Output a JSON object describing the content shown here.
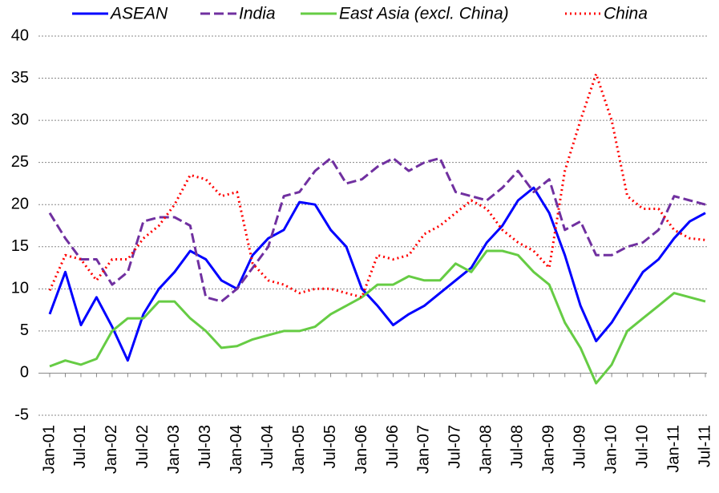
{
  "chart_data": {
    "type": "line",
    "categories": [
      "Jan-01",
      null,
      "Jul-01",
      null,
      "Jan-02",
      null,
      "Jul-02",
      null,
      "Jan-03",
      null,
      "Jul-03",
      null,
      "Jan-04",
      null,
      "Jul-04",
      null,
      "Jan-05",
      null,
      "Jul-05",
      null,
      "Jan-06",
      null,
      "Jul-06",
      null,
      "Jan-07",
      null,
      "Jul-07",
      null,
      "Jan-08",
      null,
      "Jul-08",
      null,
      "Jan-09",
      null,
      "Jul-09",
      null,
      "Jan-10",
      null,
      "Jul-10",
      null,
      "Jan-11",
      null,
      "Jul-11"
    ],
    "series": [
      {
        "name": "ASEAN",
        "color": "#0000ff",
        "style": "solid",
        "values": [
          7,
          12,
          5.7,
          9,
          5.5,
          1.5,
          7,
          10,
          12,
          14.5,
          13.5,
          11,
          10,
          14,
          16,
          17,
          20.3,
          20,
          17,
          15,
          10,
          8,
          5.7,
          7,
          8,
          9.5,
          11,
          12.5,
          15.5,
          17.5,
          20.5,
          22,
          19,
          14,
          8,
          3.8,
          6,
          9,
          12,
          13.5,
          16,
          18,
          19
        ]
      },
      {
        "name": "India",
        "color": "#7030a0",
        "style": "dashed",
        "values": [
          19,
          16,
          13.5,
          13.5,
          10.5,
          12,
          18,
          18.5,
          18.5,
          17.5,
          9,
          8.5,
          10,
          12.5,
          15,
          21,
          21.5,
          24,
          25.5,
          22.5,
          23,
          24.5,
          25.5,
          24,
          25,
          25.5,
          21.5,
          21,
          20.5,
          22,
          24,
          21.5,
          23,
          17,
          18,
          14,
          14,
          15,
          15.5,
          17,
          21,
          20.5,
          20
        ]
      },
      {
        "name": "East Asia (excl. China)",
        "color": "#66cc44",
        "style": "solid",
        "values": [
          0.8,
          1.5,
          1,
          1.7,
          5,
          6.5,
          6.5,
          8.5,
          8.5,
          6.5,
          5,
          3,
          3.2,
          4,
          4.5,
          5,
          5,
          5.5,
          7,
          8,
          9,
          10.5,
          10.5,
          11.5,
          11,
          11,
          13,
          12,
          14.5,
          14.5,
          14,
          12,
          10.5,
          6,
          3,
          -1.2,
          1,
          5,
          6.5,
          8,
          9.5,
          9,
          8.5
        ]
      },
      {
        "name": "China",
        "color": "#ff0000",
        "style": "dotted",
        "values": [
          9.8,
          14,
          13.5,
          11,
          13.5,
          13.5,
          16,
          17.5,
          20,
          23.5,
          23,
          21,
          21.5,
          13,
          11,
          10.5,
          9.5,
          10,
          10,
          9.5,
          9,
          14,
          13.5,
          14,
          16.5,
          17.5,
          19,
          20.5,
          19.5,
          17,
          15.5,
          14.5,
          12.5,
          24,
          30,
          35.5,
          30,
          21,
          19.5,
          19.5,
          17,
          16,
          15.8
        ]
      }
    ],
    "ylim": [
      -5,
      40
    ],
    "yticks": [
      -5,
      0,
      5,
      10,
      15,
      20,
      25,
      30,
      35,
      40
    ],
    "grid": true
  }
}
